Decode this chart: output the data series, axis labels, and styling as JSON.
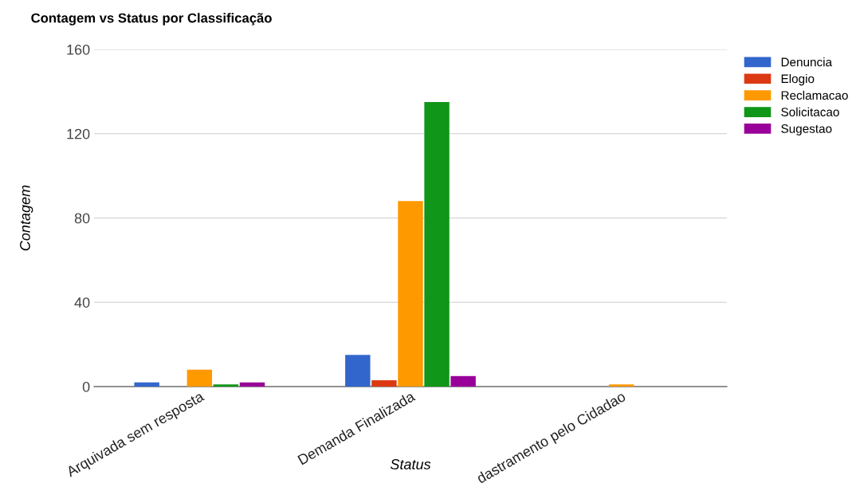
{
  "chart_data": {
    "type": "bar",
    "title": "Contagem vs Status por Classificação",
    "xlabel": "Status",
    "ylabel": "Contagem",
    "categories": [
      "Arquivada sem resposta",
      "Demanda Finalizada",
      "dastramento pelo Cidadao"
    ],
    "series": [
      {
        "name": "Denuncia",
        "color": "#3366cc",
        "values": [
          2,
          15,
          0
        ]
      },
      {
        "name": "Elogio",
        "color": "#dc3912",
        "values": [
          0,
          3,
          0
        ]
      },
      {
        "name": "Reclamacao",
        "color": "#ff9900",
        "values": [
          8,
          88,
          1
        ]
      },
      {
        "name": "Solicitacao",
        "color": "#109618",
        "values": [
          1,
          135,
          0
        ]
      },
      {
        "name": "Sugestao",
        "color": "#990099",
        "values": [
          2,
          5,
          0
        ]
      }
    ],
    "ylim": [
      0,
      160
    ],
    "yticks": [
      0,
      40,
      80,
      120,
      160
    ],
    "grid": "y",
    "legend": "top right"
  }
}
